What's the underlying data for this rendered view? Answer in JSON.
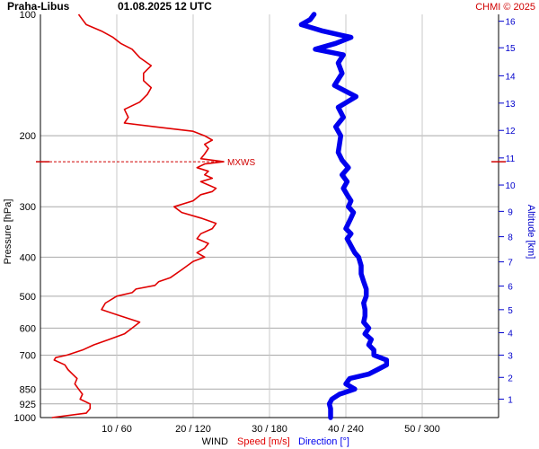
{
  "header": {
    "station": "Praha-Libus",
    "datetime": "01.08.2025 12 UTC",
    "credit": "CHMI © 2025"
  },
  "chart_data": {
    "type": "line",
    "title": "Praha-Libus 01.08.2025 12 UTC",
    "ylabel": "Pressure [hPa]",
    "y2label": "Altitude [km]",
    "xlabel_parts": {
      "main": "WIND",
      "speed": "Speed [m/s]",
      "direction": "Direction [°]"
    },
    "y_scale": "log",
    "y_inverted": true,
    "ylim": [
      1000,
      100
    ],
    "pressure_ticks": [
      100,
      200,
      300,
      400,
      500,
      600,
      700,
      850,
      925,
      1000
    ],
    "altitude_ticks": [
      1,
      2,
      3,
      4,
      5,
      6,
      7,
      8,
      9,
      10,
      11,
      12,
      13,
      14,
      15,
      16
    ],
    "altitude_pressure": [
      [
        1,
        900
      ],
      [
        2,
        795
      ],
      [
        3,
        700
      ],
      [
        4,
        616
      ],
      [
        5,
        540
      ],
      [
        6,
        472
      ],
      [
        7,
        411
      ],
      [
        8,
        356
      ],
      [
        9,
        308
      ],
      [
        10,
        265
      ],
      [
        11,
        227
      ],
      [
        12,
        194
      ],
      [
        13,
        166
      ],
      [
        14,
        142
      ],
      [
        15,
        121
      ],
      [
        16,
        104
      ]
    ],
    "x_speed_range": [
      0,
      60
    ],
    "x_direction_range": [
      0,
      360
    ],
    "x_ticks": [
      {
        "speed": 10,
        "direction": 60,
        "label": "10 / 60"
      },
      {
        "speed": 20,
        "direction": 120,
        "label": "20 / 120"
      },
      {
        "speed": 30,
        "direction": 180,
        "label": "30 / 180"
      },
      {
        "speed": 40,
        "direction": 240,
        "label": "40 / 240"
      },
      {
        "speed": 50,
        "direction": 300,
        "label": "50 / 300"
      }
    ],
    "grid": true,
    "annotations": [
      {
        "text": "MXWS",
        "pressure": 232
      }
    ],
    "series": [
      {
        "name": "Speed [m/s]",
        "color": "#e00000",
        "points": [
          [
            1000,
            1.5
          ],
          [
            975,
            6.0
          ],
          [
            950,
            6.5
          ],
          [
            925,
            6.5
          ],
          [
            900,
            5.2
          ],
          [
            875,
            5.5
          ],
          [
            850,
            5.0
          ],
          [
            825,
            4.5
          ],
          [
            800,
            4.8
          ],
          [
            780,
            4.2
          ],
          [
            760,
            3.6
          ],
          [
            740,
            3.2
          ],
          [
            720,
            1.8
          ],
          [
            710,
            2.0
          ],
          [
            700,
            3.5
          ],
          [
            680,
            5.5
          ],
          [
            660,
            7.0
          ],
          [
            640,
            9.0
          ],
          [
            620,
            11.0
          ],
          [
            600,
            12.0
          ],
          [
            580,
            13.0
          ],
          [
            560,
            10.5
          ],
          [
            540,
            8.0
          ],
          [
            520,
            8.5
          ],
          [
            500,
            10.0
          ],
          [
            490,
            12.0
          ],
          [
            480,
            12.5
          ],
          [
            470,
            15.0
          ],
          [
            460,
            15.5
          ],
          [
            450,
            17.0
          ],
          [
            430,
            18.5
          ],
          [
            410,
            20.0
          ],
          [
            400,
            21.5
          ],
          [
            390,
            20.5
          ],
          [
            380,
            21.5
          ],
          [
            370,
            22.0
          ],
          [
            360,
            20.5
          ],
          [
            350,
            21.0
          ],
          [
            340,
            22.5
          ],
          [
            330,
            23.0
          ],
          [
            320,
            21.0
          ],
          [
            310,
            18.5
          ],
          [
            300,
            17.5
          ],
          [
            290,
            20.0
          ],
          [
            280,
            21.0
          ],
          [
            275,
            22.5
          ],
          [
            270,
            23.0
          ],
          [
            265,
            22.0
          ],
          [
            260,
            21.0
          ],
          [
            255,
            22.5
          ],
          [
            250,
            21.5
          ],
          [
            245,
            22.0
          ],
          [
            240,
            20.5
          ],
          [
            235,
            21.5
          ],
          [
            232,
            24.0
          ],
          [
            228,
            21.0
          ],
          [
            222,
            21.5
          ],
          [
            215,
            22.0
          ],
          [
            210,
            21.5
          ],
          [
            205,
            22.5
          ],
          [
            200,
            21.5
          ],
          [
            195,
            20.0
          ],
          [
            190,
            15.0
          ],
          [
            186,
            11.0
          ],
          [
            180,
            11.5
          ],
          [
            172,
            11.0
          ],
          [
            165,
            13.0
          ],
          [
            158,
            14.0
          ],
          [
            152,
            14.5
          ],
          [
            146,
            13.5
          ],
          [
            140,
            13.5
          ],
          [
            134,
            14.5
          ],
          [
            128,
            13.0
          ],
          [
            122,
            12.0
          ],
          [
            118,
            10.5
          ],
          [
            114,
            9.5
          ],
          [
            110,
            8.0
          ],
          [
            106,
            6.0
          ],
          [
            103,
            5.5
          ],
          [
            100,
            5.0
          ]
        ]
      },
      {
        "name": "Direction [°]",
        "color": "#0000ee",
        "points": [
          [
            1000,
            228
          ],
          [
            975,
            228
          ],
          [
            950,
            228
          ],
          [
            925,
            227
          ],
          [
            900,
            229
          ],
          [
            875,
            235
          ],
          [
            850,
            247
          ],
          [
            825,
            240
          ],
          [
            800,
            243
          ],
          [
            780,
            258
          ],
          [
            760,
            265
          ],
          [
            740,
            272
          ],
          [
            720,
            272
          ],
          [
            700,
            262
          ],
          [
            680,
            262
          ],
          [
            660,
            258
          ],
          [
            640,
            260
          ],
          [
            620,
            255
          ],
          [
            600,
            258
          ],
          [
            580,
            254
          ],
          [
            560,
            255
          ],
          [
            540,
            255
          ],
          [
            520,
            254
          ],
          [
            500,
            256
          ],
          [
            480,
            256
          ],
          [
            460,
            254
          ],
          [
            440,
            252
          ],
          [
            420,
            252
          ],
          [
            400,
            250
          ],
          [
            390,
            247
          ],
          [
            380,
            245
          ],
          [
            370,
            243
          ],
          [
            360,
            241
          ],
          [
            350,
            244
          ],
          [
            340,
            240
          ],
          [
            330,
            242
          ],
          [
            320,
            244
          ],
          [
            310,
            246
          ],
          [
            300,
            242
          ],
          [
            290,
            244
          ],
          [
            280,
            241
          ],
          [
            270,
            238
          ],
          [
            260,
            241
          ],
          [
            250,
            237
          ],
          [
            240,
            242
          ],
          [
            230,
            237
          ],
          [
            220,
            234
          ],
          [
            210,
            235
          ],
          [
            200,
            236
          ],
          [
            190,
            232
          ],
          [
            180,
            238
          ],
          [
            170,
            234
          ],
          [
            160,
            248
          ],
          [
            150,
            231
          ],
          [
            140,
            237
          ],
          [
            132,
            234
          ],
          [
            126,
            238
          ],
          [
            122,
            216
          ],
          [
            118,
            232
          ],
          [
            114,
            244
          ],
          [
            110,
            222
          ],
          [
            106,
            205
          ],
          [
            103,
            212
          ],
          [
            100,
            215
          ]
        ]
      }
    ]
  }
}
